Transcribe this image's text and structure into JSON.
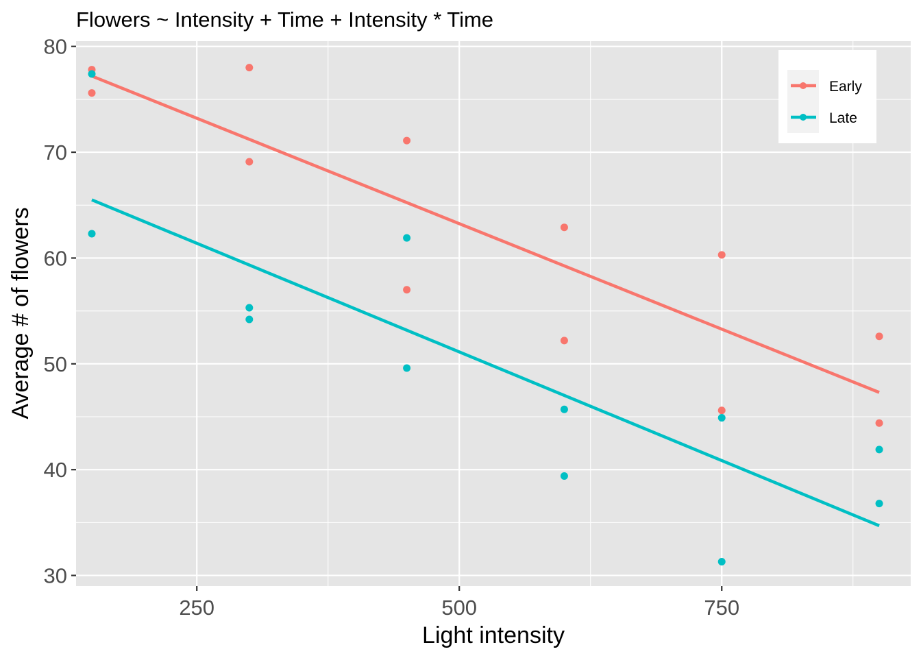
{
  "chart_data": {
    "type": "scatter",
    "title": "Flowers ~ Intensity + Time + Intensity * Time",
    "xlabel": "Light intensity",
    "ylabel": "Average # of flowers",
    "xlim": [
      135,
      930
    ],
    "ylim": [
      29,
      80.5
    ],
    "x_ticks": [
      250,
      500,
      750
    ],
    "x_tick_labels": [
      "250",
      "500",
      "750"
    ],
    "x_minor_ticks": [
      125,
      375,
      625,
      875
    ],
    "y_ticks": [
      30,
      40,
      50,
      60,
      70,
      80
    ],
    "y_tick_labels": [
      "30",
      "40",
      "50",
      "60",
      "70",
      "80"
    ],
    "y_minor_ticks": [
      35,
      45,
      55,
      65,
      75
    ],
    "grid": true,
    "background": "#e5e5e5",
    "legend_position": "top-right",
    "series": [
      {
        "name": "Early",
        "color": "#f8766d",
        "points": [
          {
            "x": 150,
            "y": 77.8
          },
          {
            "x": 150,
            "y": 75.6
          },
          {
            "x": 300,
            "y": 78.0
          },
          {
            "x": 300,
            "y": 69.1
          },
          {
            "x": 450,
            "y": 71.1
          },
          {
            "x": 450,
            "y": 57.0
          },
          {
            "x": 600,
            "y": 62.9
          },
          {
            "x": 600,
            "y": 52.2
          },
          {
            "x": 750,
            "y": 60.3
          },
          {
            "x": 750,
            "y": 45.6
          },
          {
            "x": 900,
            "y": 52.6
          },
          {
            "x": 900,
            "y": 44.4
          }
        ],
        "fit_line": [
          {
            "x": 150,
            "y": 77.2
          },
          {
            "x": 900,
            "y": 47.3
          }
        ]
      },
      {
        "name": "Late",
        "color": "#00bfc4",
        "points": [
          {
            "x": 150,
            "y": 77.4
          },
          {
            "x": 150,
            "y": 62.3
          },
          {
            "x": 300,
            "y": 55.3
          },
          {
            "x": 300,
            "y": 54.2
          },
          {
            "x": 450,
            "y": 61.9
          },
          {
            "x": 450,
            "y": 49.6
          },
          {
            "x": 600,
            "y": 45.7
          },
          {
            "x": 600,
            "y": 39.4
          },
          {
            "x": 750,
            "y": 44.9
          },
          {
            "x": 750,
            "y": 31.3
          },
          {
            "x": 900,
            "y": 41.9
          },
          {
            "x": 900,
            "y": 36.8
          }
        ],
        "fit_line": [
          {
            "x": 150,
            "y": 65.5
          },
          {
            "x": 900,
            "y": 34.7
          }
        ]
      }
    ]
  }
}
